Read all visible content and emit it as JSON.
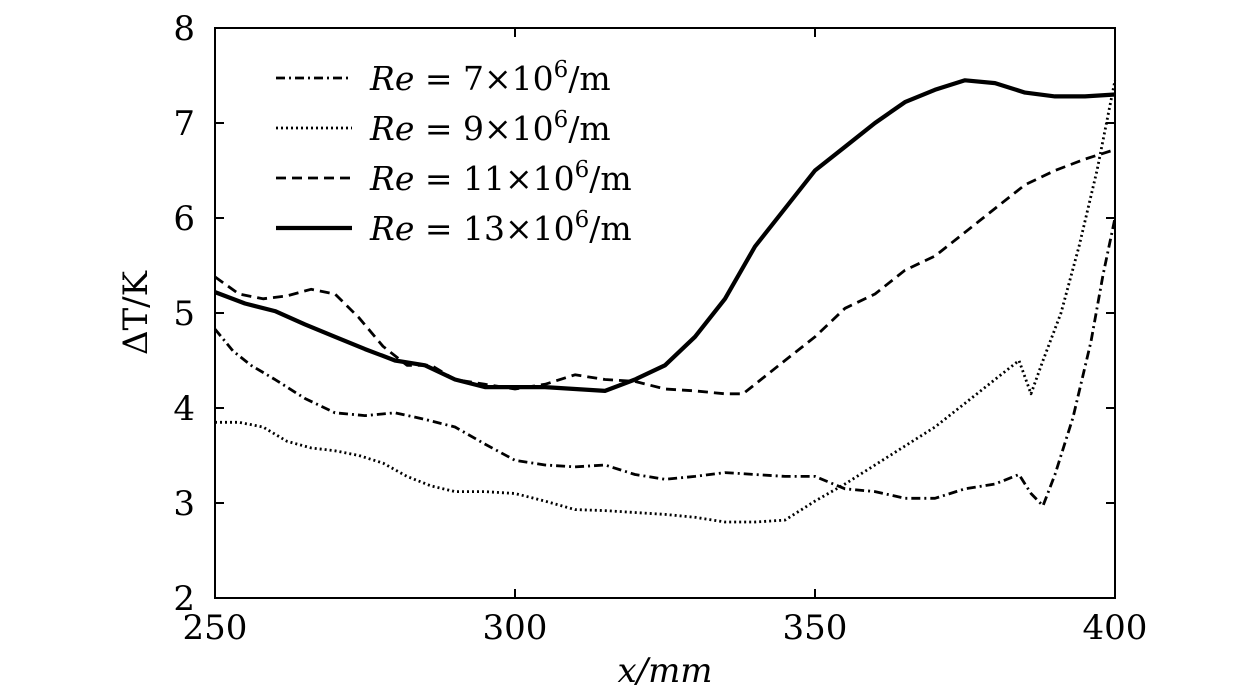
{
  "chart_data": {
    "type": "line",
    "title": "",
    "xlabel": "x/mm",
    "ylabel": "ΔT/K",
    "xlim": [
      250,
      400
    ],
    "ylim": [
      2,
      8
    ],
    "xticks": [
      250,
      300,
      350,
      400
    ],
    "yticks": [
      2,
      3,
      4,
      5,
      6,
      7,
      8
    ],
    "grid": false,
    "legend_position": "top-left",
    "series": [
      {
        "name": "Re = 7×10⁶/m",
        "style": "dashdot",
        "x": [
          250,
          253,
          256,
          260,
          265,
          270,
          275,
          280,
          285,
          290,
          295,
          300,
          305,
          310,
          315,
          320,
          325,
          330,
          335,
          340,
          345,
          350,
          355,
          360,
          365,
          370,
          375,
          380,
          384,
          386,
          388,
          390,
          393,
          396,
          398,
          400
        ],
        "y": [
          4.83,
          4.6,
          4.45,
          4.3,
          4.1,
          3.95,
          3.92,
          3.95,
          3.88,
          3.8,
          3.62,
          3.45,
          3.4,
          3.38,
          3.4,
          3.3,
          3.25,
          3.28,
          3.32,
          3.3,
          3.28,
          3.28,
          3.15,
          3.12,
          3.05,
          3.05,
          3.15,
          3.2,
          3.3,
          3.1,
          2.97,
          3.3,
          3.9,
          4.7,
          5.4,
          6.0
        ]
      },
      {
        "name": "Re = 9×10⁶/m",
        "style": "dotted",
        "x": [
          250,
          254,
          258,
          262,
          266,
          270,
          274,
          278,
          282,
          286,
          290,
          295,
          300,
          305,
          310,
          315,
          320,
          325,
          330,
          335,
          340,
          345,
          350,
          355,
          360,
          365,
          370,
          375,
          380,
          384,
          386,
          388,
          391,
          394,
          397,
          400
        ],
        "y": [
          3.85,
          3.85,
          3.8,
          3.65,
          3.58,
          3.55,
          3.5,
          3.42,
          3.28,
          3.18,
          3.12,
          3.12,
          3.1,
          3.02,
          2.93,
          2.92,
          2.9,
          2.88,
          2.85,
          2.8,
          2.8,
          2.82,
          3.02,
          3.2,
          3.4,
          3.6,
          3.8,
          4.05,
          4.3,
          4.5,
          4.15,
          4.5,
          5.0,
          5.7,
          6.5,
          7.45
        ]
      },
      {
        "name": "Re = 11×10⁶/m",
        "style": "dashed",
        "x": [
          250,
          254,
          258,
          262,
          266,
          270,
          274,
          278,
          282,
          286,
          290,
          295,
          300,
          305,
          310,
          315,
          320,
          325,
          330,
          335,
          338,
          340,
          345,
          350,
          355,
          360,
          365,
          370,
          375,
          380,
          385,
          390,
          395,
          400
        ],
        "y": [
          5.38,
          5.2,
          5.15,
          5.18,
          5.25,
          5.2,
          4.95,
          4.65,
          4.45,
          4.45,
          4.3,
          4.25,
          4.2,
          4.25,
          4.35,
          4.3,
          4.28,
          4.2,
          4.18,
          4.15,
          4.15,
          4.25,
          4.5,
          4.75,
          5.05,
          5.2,
          5.45,
          5.6,
          5.85,
          6.1,
          6.35,
          6.5,
          6.62,
          6.72
        ]
      },
      {
        "name": "Re = 13×10⁶/m",
        "style": "solid",
        "x": [
          250,
          255,
          260,
          265,
          270,
          275,
          280,
          285,
          290,
          295,
          300,
          305,
          310,
          315,
          320,
          325,
          330,
          335,
          340,
          345,
          350,
          355,
          360,
          365,
          370,
          375,
          380,
          385,
          390,
          395,
          400
        ],
        "y": [
          5.22,
          5.1,
          5.02,
          4.88,
          4.75,
          4.62,
          4.5,
          4.45,
          4.3,
          4.22,
          4.22,
          4.22,
          4.2,
          4.18,
          4.3,
          4.45,
          4.75,
          5.15,
          5.7,
          6.1,
          6.5,
          6.75,
          7.0,
          7.22,
          7.35,
          7.45,
          7.42,
          7.32,
          7.28,
          7.28,
          7.3
        ]
      }
    ]
  },
  "legend": {
    "items": [
      {
        "prefix": "Re = ",
        "coef": "7",
        "rest": "/m"
      },
      {
        "prefix": "Re = ",
        "coef": "9",
        "rest": "/m"
      },
      {
        "prefix": "Re = ",
        "coef": "11",
        "rest": "/m"
      },
      {
        "prefix": "Re = ",
        "coef": "13",
        "rest": "/m"
      }
    ]
  }
}
